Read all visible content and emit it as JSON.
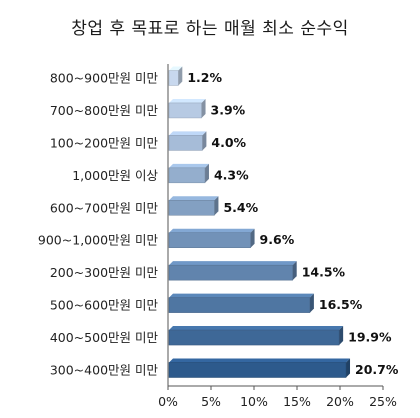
{
  "chart_data": {
    "type": "bar",
    "orientation": "horizontal",
    "title": "창업 후 목표로 하는 매월 최소 순수익",
    "categories": [
      "800~900만원 미만",
      "700~800만원 미만",
      "100~200만원 미만",
      "1,000만원 이상",
      "600~700만원 미만",
      "900~1,000만원 미만",
      "200~300만원 미만",
      "500~600만원 미만",
      "400~500만원 미만",
      "300~400만원 미만"
    ],
    "values": [
      1.2,
      3.9,
      4.0,
      4.3,
      5.4,
      9.6,
      14.5,
      16.5,
      19.9,
      20.7
    ],
    "value_labels": [
      "1.2%",
      "3.9%",
      "4.0%",
      "4.3%",
      "5.4%",
      "9.6%",
      "14.5%",
      "16.5%",
      "19.9%",
      "20.7%"
    ],
    "xlim": [
      0,
      25
    ],
    "x_ticks": [
      "0%",
      "5%",
      "10%",
      "15%",
      "20%",
      "25%"
    ],
    "grid": false,
    "legend": "none",
    "colors": {
      "light": "#c8d8ee",
      "dark": "#2d5a8c",
      "edge": "#1f3f66",
      "axis": "#555555"
    }
  }
}
